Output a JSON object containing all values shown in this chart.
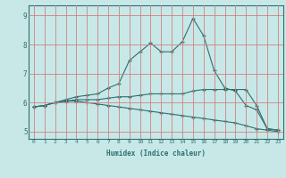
{
  "xlabel": "Humidex (Indice chaleur)",
  "x_values": [
    0,
    1,
    2,
    3,
    4,
    5,
    6,
    7,
    8,
    9,
    10,
    11,
    12,
    13,
    14,
    15,
    16,
    17,
    18,
    19,
    20,
    21,
    22,
    23
  ],
  "line1": [
    5.85,
    5.9,
    6.0,
    6.1,
    6.2,
    6.25,
    6.3,
    6.5,
    6.65,
    7.45,
    7.75,
    8.05,
    7.75,
    7.75,
    8.1,
    8.9,
    8.3,
    7.1,
    6.5,
    6.4,
    5.9,
    5.75,
    5.1,
    5.05
  ],
  "line2": [
    5.85,
    5.9,
    6.0,
    6.05,
    6.1,
    6.1,
    6.1,
    6.15,
    6.2,
    6.2,
    6.25,
    6.3,
    6.3,
    6.3,
    6.3,
    6.4,
    6.45,
    6.45,
    6.45,
    6.45,
    6.45,
    5.9,
    5.1,
    5.05
  ],
  "line3": [
    5.85,
    5.9,
    6.0,
    6.05,
    6.05,
    6.0,
    5.95,
    5.9,
    5.85,
    5.8,
    5.75,
    5.7,
    5.65,
    5.6,
    5.55,
    5.5,
    5.45,
    5.4,
    5.35,
    5.3,
    5.2,
    5.1,
    5.05,
    5.0
  ],
  "line_color": "#2e6f6f",
  "bg_color": "#c8e8e8",
  "grid_color": "#d08080",
  "ylim": [
    4.75,
    9.35
  ],
  "yticks": [
    5,
    6,
    7,
    8,
    9
  ],
  "xlim": [
    -0.5,
    23.5
  ],
  "fig_width": 3.2,
  "fig_height": 2.0,
  "dpi": 100
}
